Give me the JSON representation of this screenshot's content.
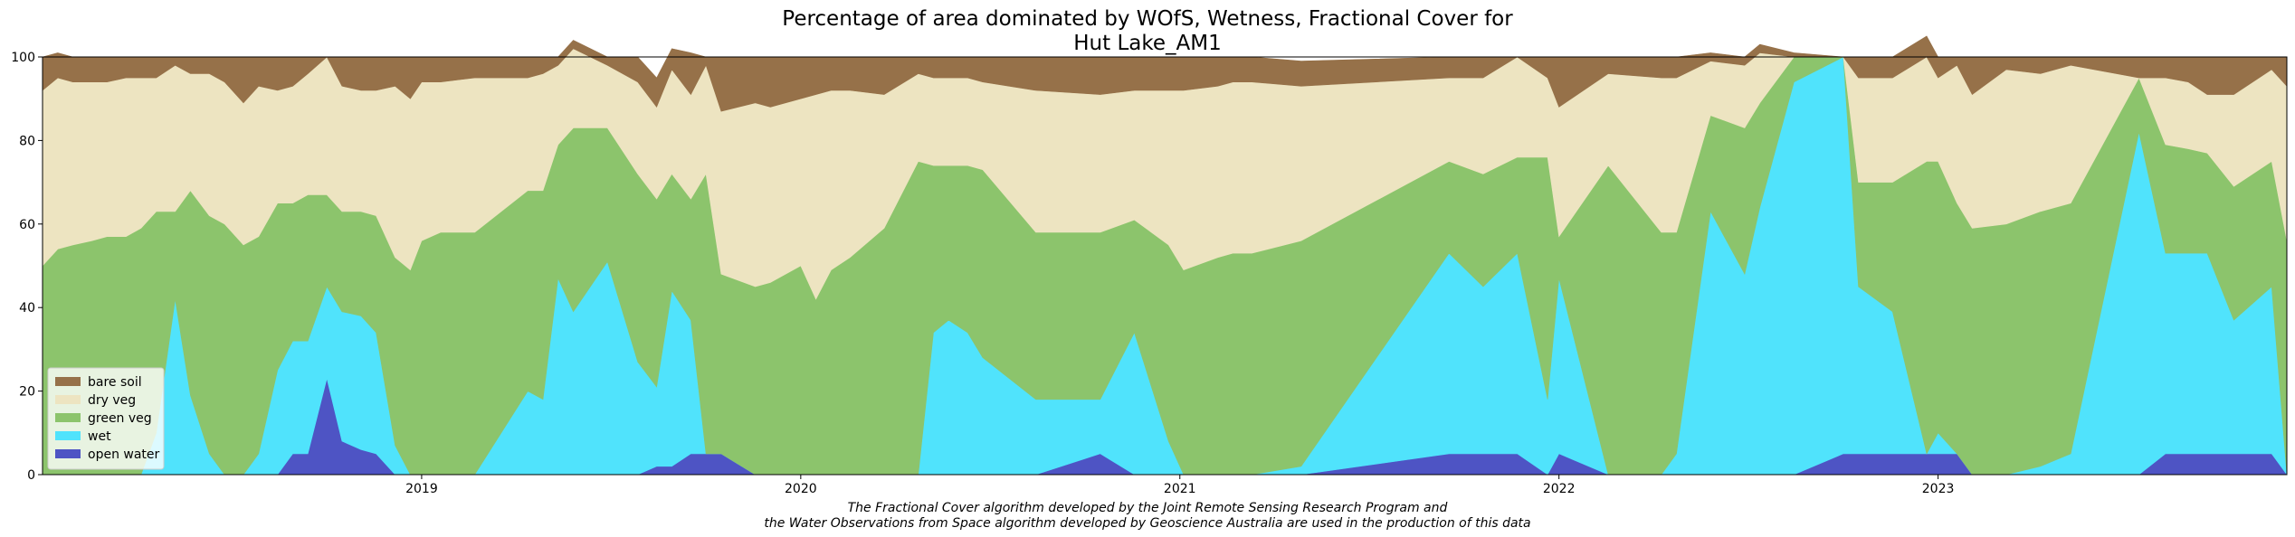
{
  "chart_data": {
    "type": "area",
    "stacked": true,
    "title_lines": [
      "Percentage of area dominated by WOfS, Wetness, Fractional Cover for",
      "Hut Lake_AM1"
    ],
    "xlabel": "",
    "ylabel": "",
    "xlim": [
      2018.0,
      2023.92
    ],
    "ylim": [
      0,
      100
    ],
    "x_ticks": [
      {
        "value": 2019,
        "label": "2019"
      },
      {
        "value": 2020,
        "label": "2020"
      },
      {
        "value": 2021,
        "label": "2021"
      },
      {
        "value": 2022,
        "label": "2022"
      },
      {
        "value": 2023,
        "label": "2023"
      }
    ],
    "y_ticks": [
      0,
      20,
      40,
      60,
      80,
      100
    ],
    "grid": false,
    "legend_position": "lower-left",
    "legend_order": [
      "bare soil",
      "dry veg",
      "green veg",
      "wet",
      "open water"
    ],
    "x": [
      2018.0,
      2018.04,
      2018.08,
      2018.13,
      2018.17,
      2018.22,
      2018.26,
      2018.3,
      2018.35,
      2018.39,
      2018.44,
      2018.48,
      2018.53,
      2018.57,
      2018.62,
      2018.66,
      2018.7,
      2018.75,
      2018.79,
      2018.84,
      2018.88,
      2018.93,
      2018.97,
      2019.0,
      2019.05,
      2019.14,
      2019.28,
      2019.32,
      2019.36,
      2019.4,
      2019.49,
      2019.57,
      2019.62,
      2019.66,
      2019.71,
      2019.75,
      2019.79,
      2019.88,
      2019.92,
      2020.0,
      2020.04,
      2020.08,
      2020.13,
      2020.22,
      2020.31,
      2020.35,
      2020.39,
      2020.44,
      2020.48,
      2020.62,
      2020.79,
      2020.88,
      2020.97,
      2021.01,
      2021.1,
      2021.14,
      2021.19,
      2021.32,
      2021.71,
      2021.8,
      2021.89,
      2021.97,
      2022.0,
      2022.13,
      2022.27,
      2022.31,
      2022.4,
      2022.49,
      2022.53,
      2022.62,
      2022.75,
      2022.79,
      2022.88,
      2022.97,
      2023.0,
      2023.05,
      2023.09,
      2023.18,
      2023.27,
      2023.35,
      2023.53,
      2023.6,
      2023.66,
      2023.71,
      2023.78,
      2023.88,
      2023.92
    ],
    "series": [
      {
        "name": "open water",
        "color": "#4e54c4",
        "values": [
          0,
          0,
          0,
          0,
          0,
          0,
          0,
          0,
          0,
          0,
          0,
          0,
          0,
          0,
          0,
          5,
          5,
          23,
          8,
          6,
          5,
          0,
          0,
          0,
          0,
          0,
          0,
          0,
          0,
          0,
          0,
          0,
          2,
          2,
          5,
          5,
          5,
          0,
          0,
          0,
          0,
          0,
          0,
          0,
          0,
          0,
          0,
          0,
          0,
          0,
          5,
          0,
          0,
          0,
          0,
          0,
          0,
          0,
          5,
          5,
          5,
          0,
          5,
          0,
          0,
          0,
          0,
          0,
          0,
          0,
          5,
          5,
          5,
          5,
          5,
          5,
          0,
          0,
          0,
          0,
          0,
          5,
          5,
          5,
          5,
          5,
          0
        ]
      },
      {
        "name": "wet",
        "color": "#50e3fc",
        "values": [
          0,
          0,
          0,
          0,
          0,
          0,
          0,
          10,
          42,
          19,
          5,
          0,
          0,
          5,
          25,
          27,
          27,
          22,
          31,
          32,
          29,
          7,
          0,
          0,
          0,
          0,
          20,
          18,
          47,
          39,
          51,
          27,
          19,
          42,
          32,
          0,
          0,
          0,
          0,
          0,
          0,
          0,
          0,
          0,
          0,
          34,
          37,
          34,
          28,
          18,
          13,
          34,
          8,
          0,
          0,
          0,
          0,
          2,
          48,
          40,
          48,
          18,
          42,
          0,
          0,
          5,
          63,
          48,
          64,
          94,
          95,
          40,
          34,
          0,
          5,
          0,
          0,
          0,
          2,
          5,
          82,
          48,
          48,
          48,
          32,
          40,
          0
        ]
      },
      {
        "name": "green veg",
        "color": "#8cc46c",
        "values": [
          50,
          54,
          55,
          56,
          57,
          57,
          59,
          53,
          21,
          49,
          57,
          60,
          55,
          52,
          40,
          33,
          35,
          22,
          24,
          25,
          28,
          45,
          49,
          56,
          58,
          58,
          48,
          50,
          32,
          44,
          32,
          45,
          45,
          28,
          29,
          67,
          43,
          45,
          46,
          50,
          42,
          49,
          52,
          59,
          75,
          40,
          37,
          40,
          45,
          40,
          40,
          27,
          47,
          49,
          52,
          53,
          53,
          54,
          22,
          27,
          23,
          58,
          10,
          74,
          58,
          53,
          23,
          35,
          25,
          6,
          0,
          25,
          31,
          70,
          65,
          60,
          59,
          60,
          61,
          60,
          13,
          26,
          25,
          24,
          32,
          30,
          56
        ]
      },
      {
        "name": "dry veg",
        "color": "#ede4c1",
        "values": [
          42,
          41,
          39,
          38,
          37,
          38,
          36,
          32,
          35,
          28,
          34,
          34,
          34,
          36,
          27,
          28,
          29,
          33,
          30,
          29,
          30,
          41,
          41,
          38,
          36,
          37,
          27,
          28,
          19,
          19,
          15,
          22,
          22,
          25,
          25,
          26,
          39,
          44,
          42,
          40,
          49,
          43,
          40,
          32,
          21,
          21,
          21,
          21,
          21,
          34,
          33,
          31,
          37,
          43,
          41,
          41,
          41,
          37,
          20,
          23,
          24,
          19,
          31,
          22,
          37,
          37,
          13,
          15,
          12,
          0,
          0,
          25,
          25,
          25,
          20,
          33,
          32,
          37,
          33,
          33,
          0,
          16,
          16,
          14,
          22,
          22,
          37
        ]
      },
      {
        "name": "bare soil",
        "color": "#967149",
        "values": [
          8,
          6,
          6,
          6,
          6,
          5,
          5,
          5,
          2,
          4,
          4,
          6,
          11,
          7,
          8,
          7,
          4,
          0,
          7,
          8,
          8,
          7,
          10,
          6,
          6,
          5,
          5,
          4,
          2,
          2,
          2,
          6,
          7,
          5,
          10,
          2,
          13,
          11,
          12,
          10,
          9,
          8,
          8,
          9,
          4,
          5,
          5,
          5,
          6,
          8,
          9,
          8,
          8,
          8,
          7,
          6,
          6,
          6,
          5,
          5,
          0,
          5,
          12,
          4,
          5,
          5,
          2,
          2,
          2,
          1,
          0,
          5,
          5,
          5,
          5,
          2,
          9,
          3,
          4,
          2,
          5,
          5,
          6,
          9,
          9,
          3,
          7
        ]
      }
    ],
    "footnote_lines": [
      "The Fractional Cover algorithm developed by the Joint Remote Sensing Research Program and",
      "the Water Observations from Space algorithm developed by Geoscience Australia are used in the production of this data"
    ]
  }
}
